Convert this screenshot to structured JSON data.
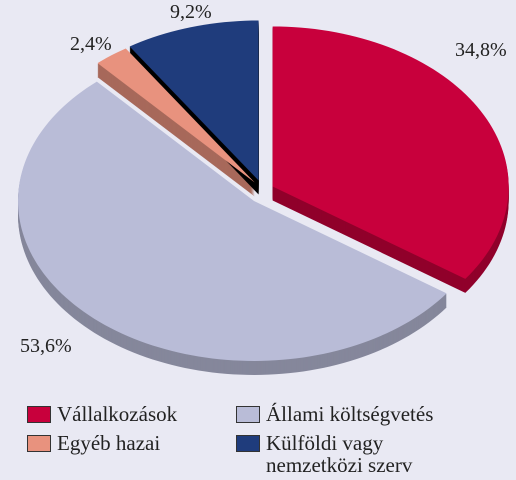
{
  "chart_data": {
    "type": "pie",
    "categories": [
      "Vállalkozások",
      "Állami költségvetés",
      "Egyéb hazai",
      "Külföldi vagy nemzetközi szerv"
    ],
    "values": [
      34.8,
      53.6,
      2.4,
      9.2
    ],
    "value_labels": [
      "34,8%",
      "53,6%",
      "2,4%",
      "9,2%"
    ],
    "colors": [
      "#c8003c",
      "#b9bcd7",
      "#e8927e",
      "#1f3c7c"
    ],
    "legend": true
  }
}
